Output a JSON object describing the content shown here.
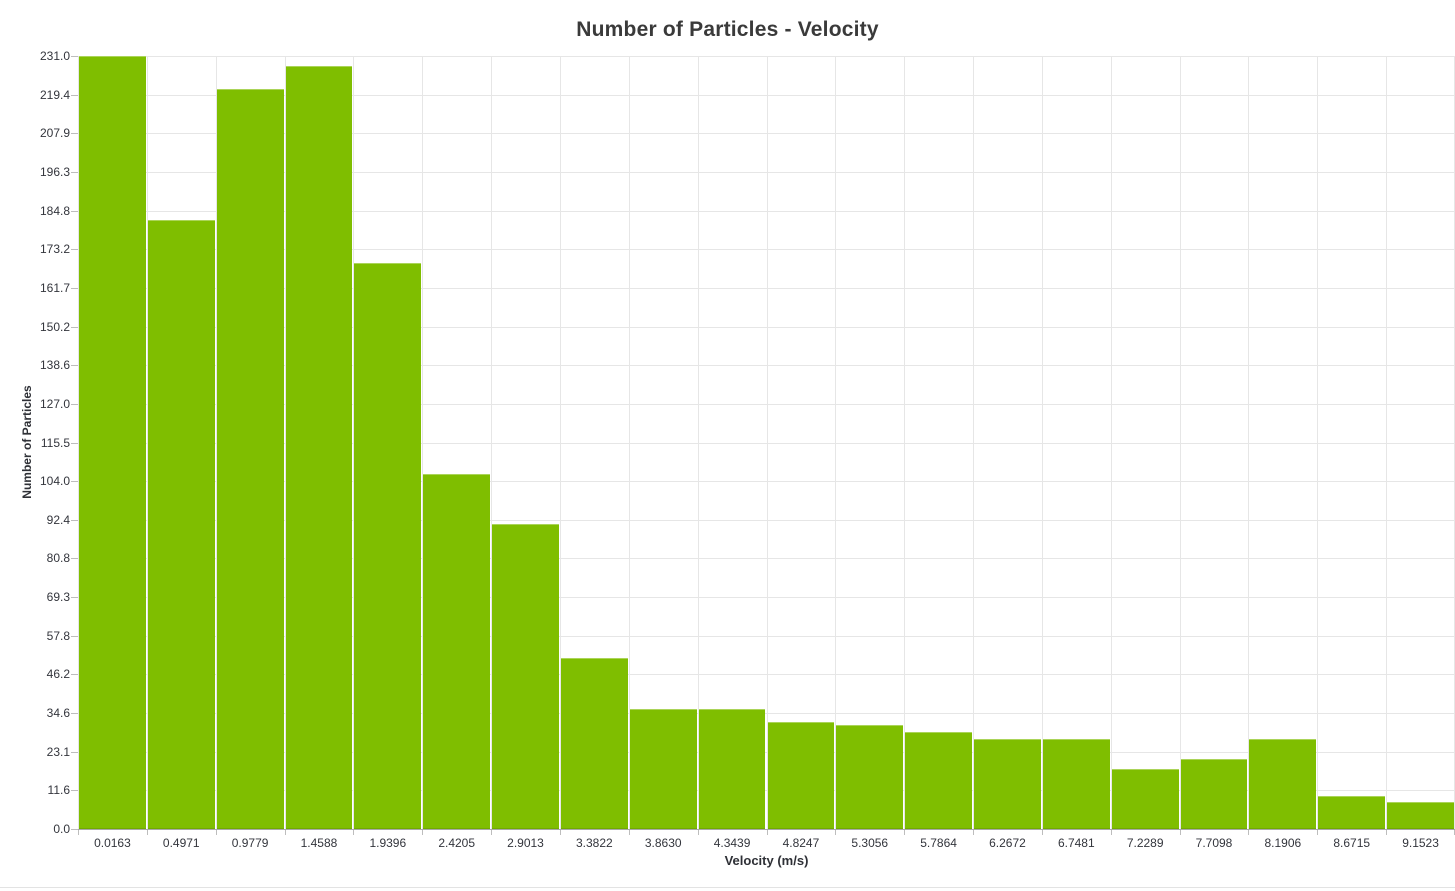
{
  "title": "Number of Particles - Velocity",
  "chart_data": {
    "type": "bar",
    "title": "Number of Particles - Velocity",
    "xlabel": "Velocity (m/s)",
    "ylabel": "Number of Particles",
    "categories": [
      "0.0163",
      "0.4971",
      "0.9779",
      "1.4588",
      "1.9396",
      "2.4205",
      "2.9013",
      "3.3822",
      "3.8630",
      "4.3439",
      "4.8247",
      "5.3056",
      "5.7864",
      "6.2672",
      "6.7481",
      "7.2289",
      "7.7098",
      "8.1906",
      "8.6715",
      "9.1523"
    ],
    "values": [
      231,
      182,
      221,
      228,
      169,
      106,
      91,
      51,
      36,
      36,
      32,
      31,
      29,
      27,
      27,
      18,
      21,
      27,
      10,
      8
    ],
    "ylim": [
      0,
      231
    ],
    "y_tick_labels": [
      "231.0",
      "219.4",
      "207.9",
      "196.3",
      "184.8",
      "173.2",
      "161.7",
      "150.2",
      "138.6",
      "127.0",
      "115.5",
      "104.0",
      "92.4",
      "80.8",
      "69.3",
      "57.8",
      "46.2",
      "34.6",
      "23.1",
      "11.6",
      "0.0"
    ],
    "grid": true,
    "legend": "none",
    "bar_color": "#7fbe00"
  },
  "colors": {
    "bar": "#7fbe00",
    "gridline": "#e6e6e6",
    "axis_line": "#a8a8a8",
    "tick": "#bdbdbd",
    "tick_text": "#33353c",
    "title_text": "#3a3a3a",
    "background": "#ffffff"
  }
}
